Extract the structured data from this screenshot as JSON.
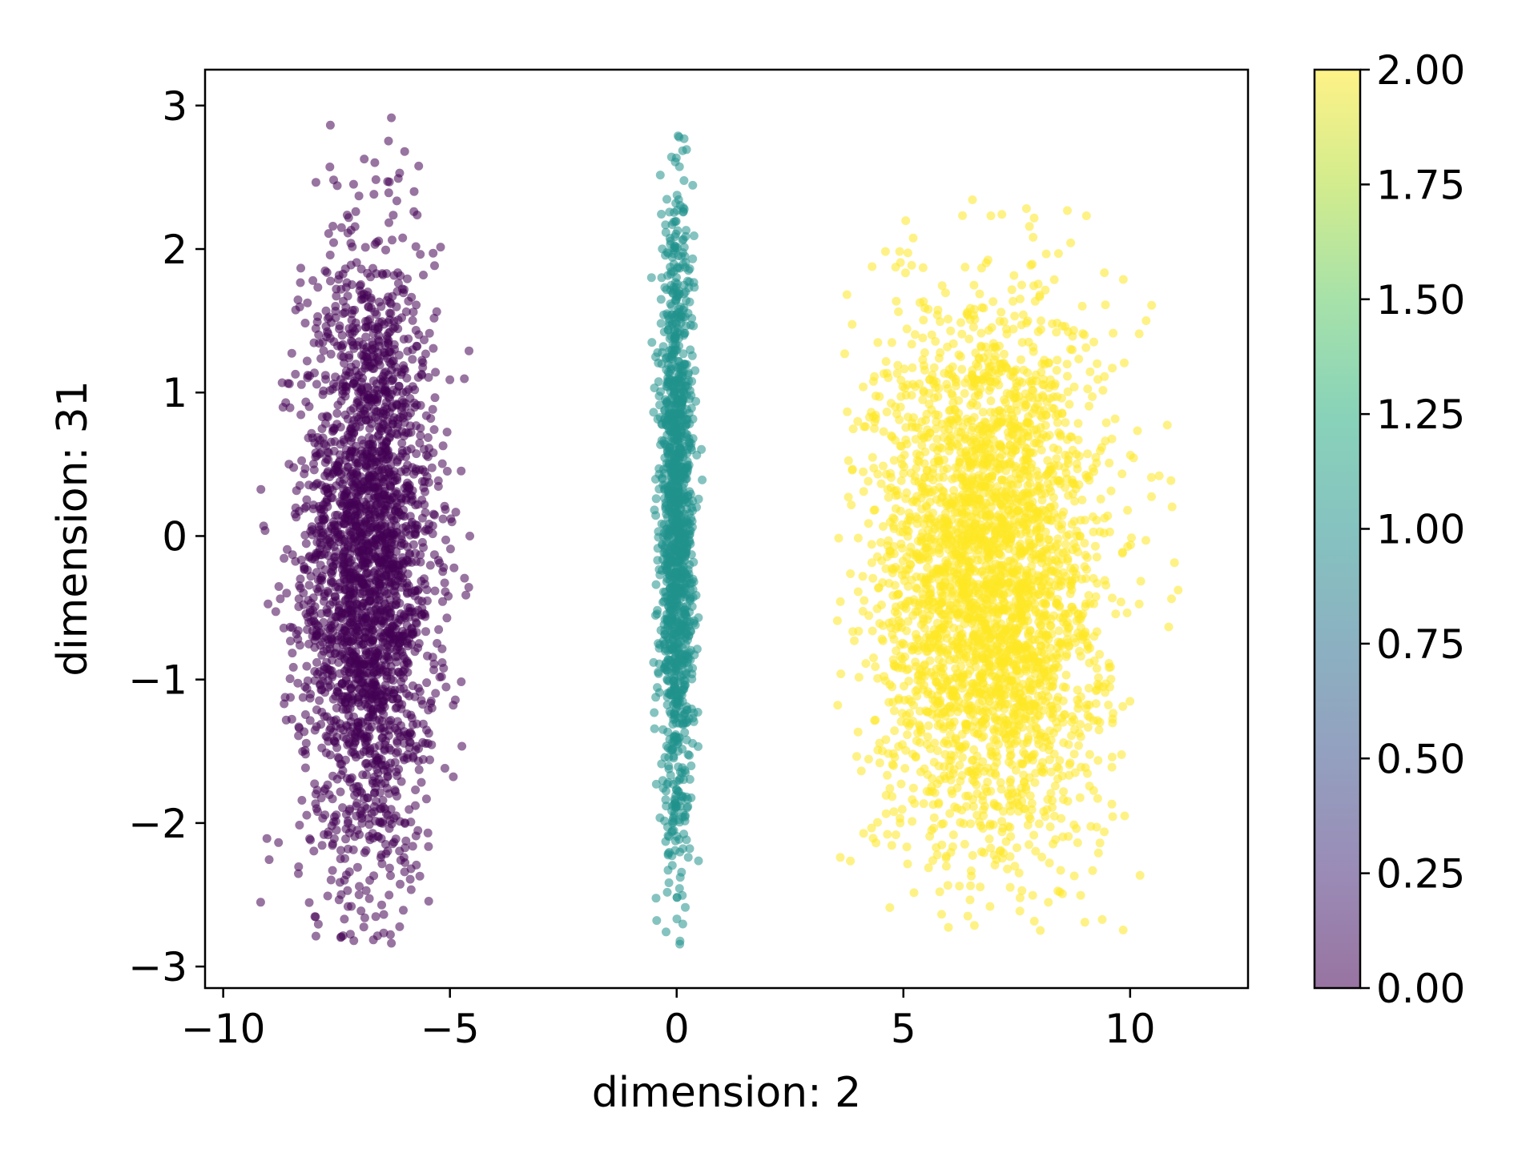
{
  "chart_data": {
    "type": "scatter",
    "title": "",
    "xlabel": "dimension: 2",
    "ylabel": "dimension: 31",
    "xlim": [
      -10.4,
      12.6
    ],
    "ylim": [
      -3.15,
      3.25
    ],
    "x_ticks": [
      -10,
      -5,
      0,
      5,
      10
    ],
    "x_tick_labels": [
      "−10",
      "−5",
      "0",
      "5",
      "10"
    ],
    "y_ticks": [
      -3,
      -2,
      -1,
      0,
      1,
      2,
      3
    ],
    "y_tick_labels": [
      "−3",
      "−2",
      "−1",
      "0",
      "1",
      "2",
      "3"
    ],
    "grid": false,
    "colormap": "viridis",
    "marker_alpha": 0.55,
    "colorbar": {
      "range": [
        0.0,
        2.0
      ],
      "ticks": [
        0.0,
        0.25,
        0.5,
        0.75,
        1.0,
        1.25,
        1.5,
        1.75,
        2.0
      ],
      "tick_labels": [
        "0.00",
        "0.25",
        "0.50",
        "0.75",
        "1.00",
        "1.25",
        "1.50",
        "1.75",
        "2.00"
      ]
    },
    "series": [
      {
        "value": 0,
        "color": "#440154",
        "x_range": [
          -9.3,
          -4.5
        ],
        "y_range": [
          -2.85,
          2.95
        ],
        "center_x": -6.8,
        "center_y": -0.2
      },
      {
        "value": 1,
        "color": "#21918c",
        "x_range": [
          -0.6,
          0.6
        ],
        "y_range": [
          -2.85,
          2.8
        ],
        "center_x": 0.0,
        "center_y": 0.0
      },
      {
        "value": 2,
        "color": "#fde725",
        "x_range": [
          3.5,
          11.7
        ],
        "y_range": [
          -2.75,
          2.35
        ],
        "center_x": 6.9,
        "center_y": -0.3
      }
    ]
  }
}
